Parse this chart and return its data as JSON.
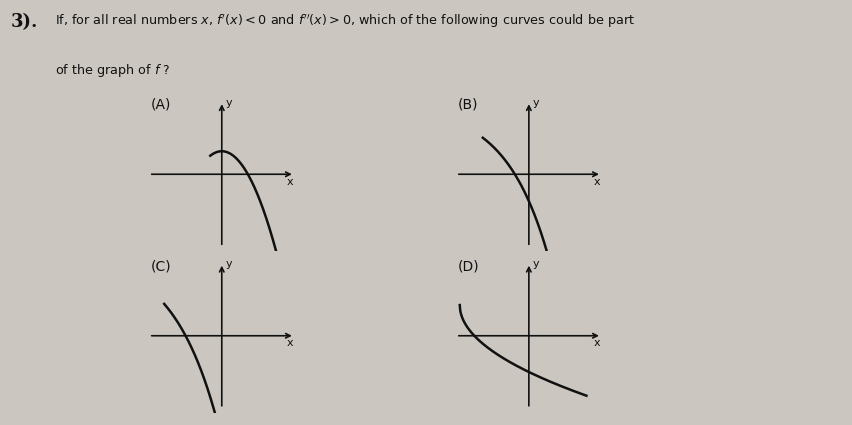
{
  "background_color": "#cbc7c0",
  "text_color": "#111111",
  "labels": [
    "(A)",
    "(B)",
    "(C)",
    "(D)"
  ],
  "line_color": "#111111",
  "line_width": 1.8,
  "axis_lw": 1.2,
  "curve_A": "decreasing_concave_down",
  "curve_B": "decreasing_concave_up_from_upper_left",
  "curve_C": "decreasing_concave_up_crossing_origin",
  "curve_D": "decreasing_concave_down_from_flat"
}
